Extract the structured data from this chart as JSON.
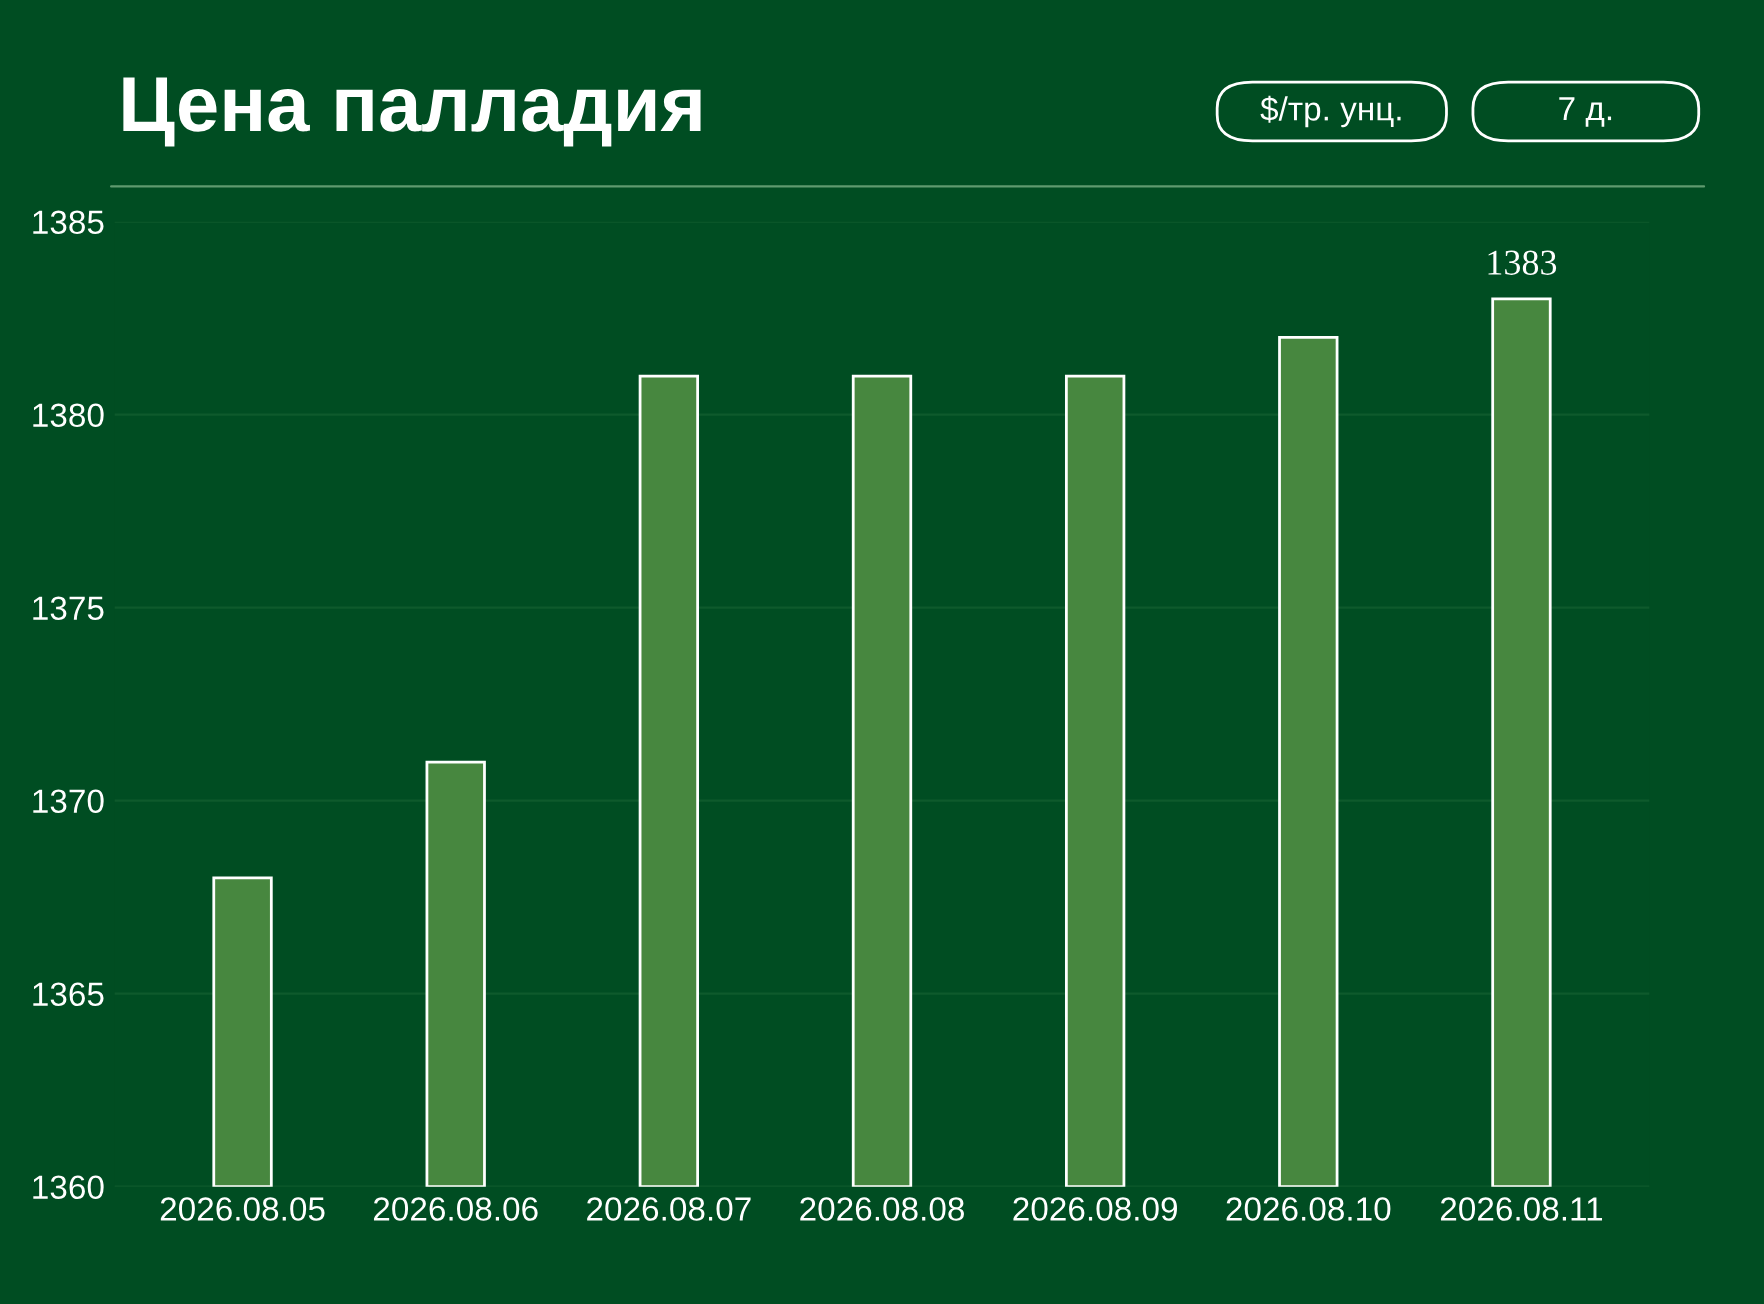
{
  "chart_data": {
    "type": "bar",
    "title": "Цена палладия",
    "annotations": [
      "$/тр. унц.",
      "7 д."
    ],
    "categories": [
      "2026.08.05",
      "2026.08.06",
      "2026.08.07",
      "2026.08.08",
      "2026.08.09",
      "2026.08.10",
      "2026.08.11"
    ],
    "values": [
      1368,
      1371,
      1381,
      1381,
      1381,
      1382,
      1383
    ],
    "value_labels": [
      null,
      null,
      null,
      null,
      null,
      null,
      "1383"
    ],
    "color": "#47873f",
    "ylim": [
      1360,
      1385
    ],
    "yticks": [
      1360,
      1365,
      1370,
      1375,
      1380,
      1385
    ],
    "grid": "y",
    "legend": false
  }
}
